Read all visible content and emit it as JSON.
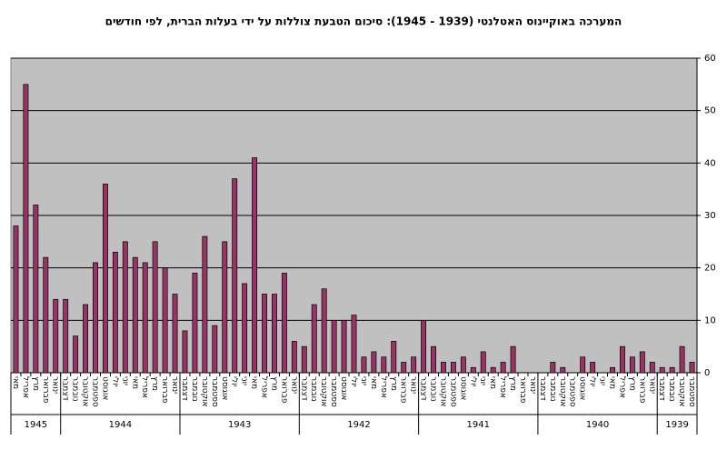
{
  "chart_data": {
    "type": "bar",
    "title": "המערכה באוקיינוס האטלנטי (1939 - 1945):  סיכום הטבעת צוללות על ידי בעלות הברית, לפי חודשים",
    "color": "#993366",
    "ylim": [
      0,
      60
    ],
    "yticks": [
      0,
      10,
      20,
      30,
      40,
      50,
      60
    ],
    "grid": true,
    "groups": [
      {
        "label": "1945",
        "categories": [
          "מאי",
          "אפריל",
          "מרץ",
          "פברואר",
          "ינואר"
        ],
        "values": [
          28,
          55,
          32,
          22,
          14
        ]
      },
      {
        "label": "1944",
        "categories": [
          "דצמבר",
          "נובמבר",
          "אוקטובר",
          "ספטמבר",
          "אוגוסט",
          "יולי",
          "יוני",
          "מאי",
          "אפריל",
          "מרץ",
          "פברואר",
          "ינואר"
        ],
        "values": [
          14,
          7,
          13,
          21,
          36,
          23,
          25,
          22,
          21,
          25,
          20,
          15
        ]
      },
      {
        "label": "1943",
        "categories": [
          "דצמבר",
          "נובמבר",
          "אוקטובר",
          "ספטמבר",
          "אוגוסט",
          "יולי",
          "יוני",
          "מאי",
          "אפריל",
          "מרץ",
          "פברואר",
          "ינואר"
        ],
        "values": [
          8,
          19,
          26,
          9,
          25,
          37,
          17,
          41,
          15,
          15,
          19,
          6
        ]
      },
      {
        "label": "1942",
        "categories": [
          "דצמבר",
          "נובמבר",
          "אוקטובר",
          "ספטמבר",
          "אוגוסט",
          "יולי",
          "יוני",
          "מאי",
          "אפריל",
          "מרץ",
          "פברואר",
          "ינואר"
        ],
        "values": [
          5,
          13,
          16,
          10,
          10,
          11,
          3,
          4,
          3,
          6,
          2,
          3
        ]
      },
      {
        "label": "1941",
        "categories": [
          "דצמבר",
          "נובמבר",
          "אוקטובר",
          "ספטמבר",
          "אוגוסט",
          "יולי",
          "יוני",
          "מאי",
          "אפריל",
          "מרץ",
          "פברואר",
          "ינואר"
        ],
        "values": [
          10,
          5,
          2,
          2,
          3,
          1,
          4,
          1,
          2,
          5,
          0,
          0
        ]
      },
      {
        "label": "1940",
        "categories": [
          "דצמבר",
          "נובמבר",
          "אוקטובר",
          "ספטמבר",
          "אוגוסט",
          "יולי",
          "יוני",
          "מאי",
          "אפריל",
          "מרץ",
          "פברואר",
          "ינואר"
        ],
        "values": [
          0,
          2,
          1,
          0,
          3,
          2,
          0,
          1,
          5,
          3,
          4,
          2
        ]
      },
      {
        "label": "1939",
        "categories": [
          "דצמבר",
          "נובמבר",
          "אוקטובר",
          "ספטמבר"
        ],
        "values": [
          1,
          1,
          5,
          2
        ]
      }
    ]
  }
}
